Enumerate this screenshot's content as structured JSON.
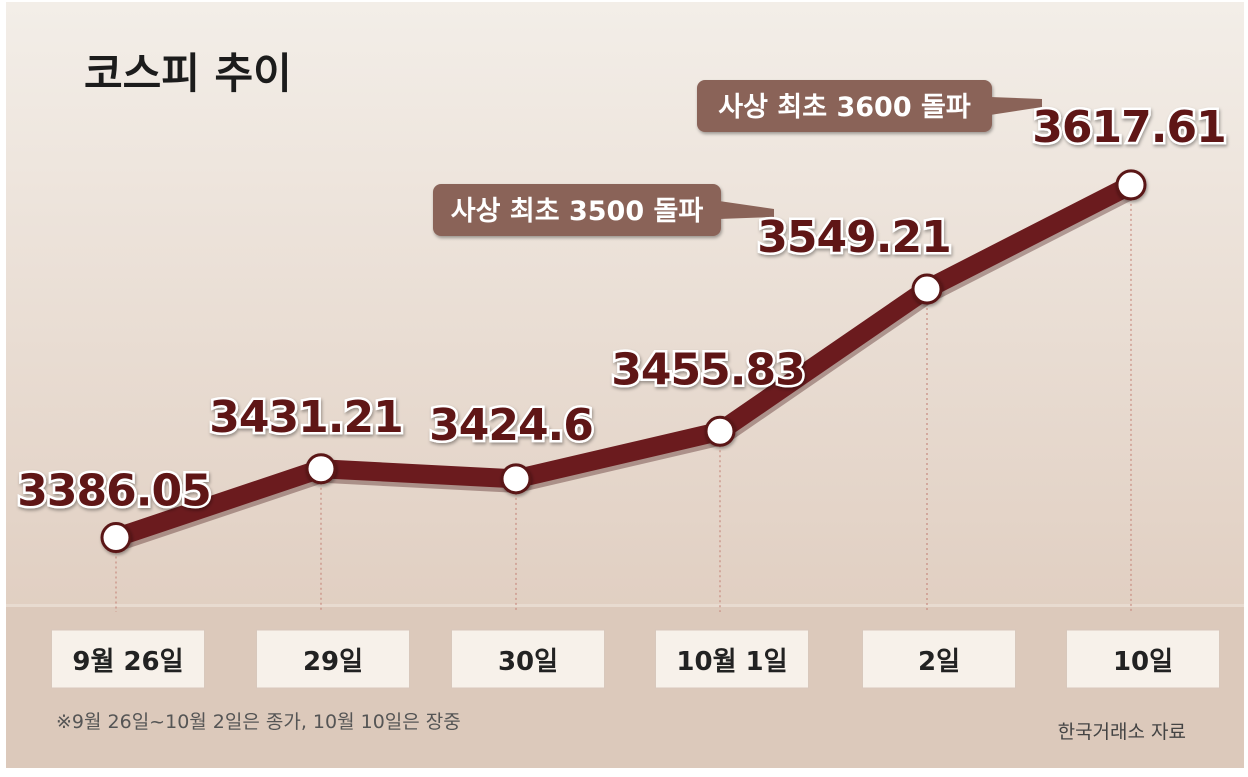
{
  "chart_data": {
    "type": "line",
    "title": "코스피 추이",
    "categories": [
      "9월 26일",
      "29일",
      "30일",
      "10월 1일",
      "2일",
      "10일"
    ],
    "values": [
      3386.05,
      3431.21,
      3424.6,
      3455.83,
      3549.21,
      3617.61
    ],
    "value_labels": [
      "3386.05",
      "3431.21",
      "3424.6",
      "3455.83",
      "3549.21",
      "3617.61"
    ],
    "ylim": [
      3370,
      3630
    ],
    "grid": false,
    "annotations": [
      {
        "text": "사상 최초 3500 돌파",
        "point_index": 4
      },
      {
        "text": "사상 최초 3600 돌파",
        "point_index": 5
      }
    ],
    "footnote": "※9월 26일~10월 2일은 종가, 10월 10일은 장중",
    "source": "한국거래소 자료"
  },
  "colors": {
    "line": "#6b1b1e",
    "value_text": "#5e1719",
    "annotation_bg": "#8a6358",
    "annotation_text": "#ffffff",
    "background_top": "#f2ece6",
    "background_bottom": "#dcc6b7",
    "band": "#dcc9bb",
    "box_fill": "#f7f1ea",
    "title": "#1c1c1c"
  }
}
